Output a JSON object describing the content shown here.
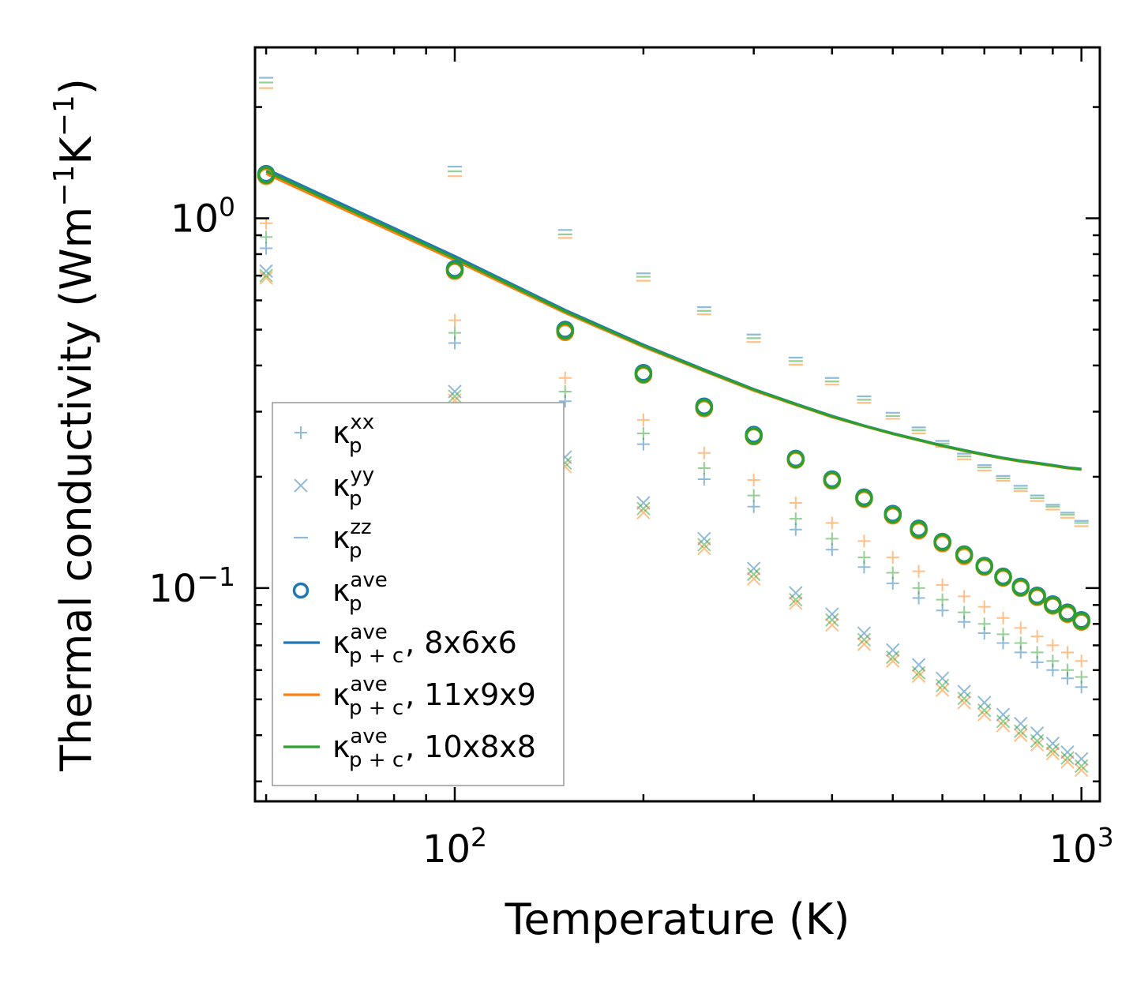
{
  "chart_data": {
    "type": "scatter",
    "title": "",
    "xlabel": "Temperature (K)",
    "ylabel": "Thermal conductivity (Wm$^{-1}$K$^{-1}$)",
    "ylabel_parts": {
      "main": "Thermal conductivity (Wm",
      "sup1": "−1",
      "mid": "K",
      "sup2": "−1",
      "end": ")"
    },
    "xscale": "log",
    "yscale": "log",
    "xlim": [
      48,
      1070
    ],
    "ylim": [
      0.0265,
      2.9
    ],
    "xticks": [
      {
        "value": 100,
        "base": "10",
        "exp": "2"
      },
      {
        "value": 1000,
        "base": "10",
        "exp": "3"
      }
    ],
    "yticks": [
      {
        "value": 0.1,
        "base": "10",
        "exp": "−1"
      },
      {
        "value": 1,
        "base": "10",
        "exp": "0"
      }
    ],
    "colors": {
      "blue": "#1f77b4",
      "orange": "#ff7f0e",
      "green": "#2ca02c"
    },
    "x": [
      50,
      100,
      150,
      200,
      250,
      300,
      350,
      400,
      450,
      500,
      550,
      600,
      650,
      700,
      750,
      800,
      850,
      900,
      950,
      1000
    ],
    "series": [
      {
        "name": "8x6x6",
        "color": "#1f77b4",
        "kxx": [
          0.83,
          0.46,
          0.32,
          0.245,
          0.197,
          0.166,
          0.144,
          0.127,
          0.114,
          0.103,
          0.094,
          0.087,
          0.081,
          0.0755,
          0.071,
          0.067,
          0.063,
          0.06,
          0.057,
          0.054
        ],
        "kyy": [
          0.72,
          0.34,
          0.226,
          0.17,
          0.136,
          0.113,
          0.097,
          0.085,
          0.0755,
          0.068,
          0.062,
          0.057,
          0.0525,
          0.049,
          0.0455,
          0.043,
          0.0405,
          0.038,
          0.036,
          0.0345
        ],
        "kzz": [
          2.4,
          1.38,
          0.93,
          0.71,
          0.575,
          0.485,
          0.42,
          0.37,
          0.33,
          0.298,
          0.272,
          0.25,
          0.231,
          0.215,
          0.201,
          0.189,
          0.178,
          0.168,
          0.16,
          0.152
        ],
        "kave": [
          1.32,
          0.73,
          0.5,
          0.382,
          0.31,
          0.26,
          0.224,
          0.197,
          0.176,
          0.159,
          0.145,
          0.1335,
          0.1235,
          0.115,
          0.1075,
          0.101,
          0.0955,
          0.0905,
          0.086,
          0.082
        ],
        "kpc": [
          1.36,
          0.79,
          0.565,
          0.455,
          0.39,
          0.345,
          0.315,
          0.292,
          0.275,
          0.262,
          0.252,
          0.243,
          0.236,
          0.23,
          0.225,
          0.221,
          0.218,
          0.215,
          0.212,
          0.21
        ]
      },
      {
        "name": "11x9x9",
        "color": "#ff7f0e",
        "kxx": [
          0.97,
          0.53,
          0.37,
          0.285,
          0.232,
          0.196,
          0.17,
          0.15,
          0.134,
          0.121,
          0.111,
          0.102,
          0.095,
          0.089,
          0.083,
          0.078,
          0.074,
          0.07,
          0.067,
          0.0635
        ],
        "kyy": [
          0.69,
          0.322,
          0.213,
          0.16,
          0.128,
          0.106,
          0.091,
          0.0795,
          0.0705,
          0.0635,
          0.0578,
          0.053,
          0.049,
          0.0455,
          0.0425,
          0.04,
          0.0377,
          0.0357,
          0.0339,
          0.0322
        ],
        "kzz": [
          2.25,
          1.3,
          0.885,
          0.678,
          0.55,
          0.463,
          0.402,
          0.355,
          0.317,
          0.287,
          0.262,
          0.241,
          0.223,
          0.208,
          0.195,
          0.183,
          0.172,
          0.163,
          0.155,
          0.147
        ],
        "kave": [
          1.3,
          0.72,
          0.492,
          0.377,
          0.306,
          0.257,
          0.222,
          0.195,
          0.174,
          0.157,
          0.143,
          0.132,
          0.122,
          0.114,
          0.1065,
          0.1,
          0.0945,
          0.0895,
          0.085,
          0.081
        ],
        "kpc": [
          1.32,
          0.77,
          0.555,
          0.449,
          0.386,
          0.342,
          0.313,
          0.29,
          0.274,
          0.261,
          0.251,
          0.242,
          0.235,
          0.229,
          0.224,
          0.22,
          0.217,
          0.214,
          0.211,
          0.209
        ]
      },
      {
        "name": "10x8x8",
        "color": "#2ca02c",
        "kxx": [
          0.89,
          0.49,
          0.34,
          0.262,
          0.211,
          0.178,
          0.154,
          0.136,
          0.121,
          0.11,
          0.1,
          0.093,
          0.086,
          0.08,
          0.075,
          0.071,
          0.067,
          0.0635,
          0.06,
          0.0575
        ],
        "kyy": [
          0.7,
          0.33,
          0.218,
          0.164,
          0.131,
          0.109,
          0.093,
          0.082,
          0.0725,
          0.065,
          0.059,
          0.0545,
          0.0503,
          0.0467,
          0.0436,
          0.041,
          0.0386,
          0.0365,
          0.0347,
          0.033
        ],
        "kzz": [
          2.33,
          1.34,
          0.905,
          0.695,
          0.562,
          0.474,
          0.411,
          0.362,
          0.323,
          0.292,
          0.267,
          0.246,
          0.227,
          0.212,
          0.198,
          0.186,
          0.175,
          0.166,
          0.158,
          0.15
        ],
        "kave": [
          1.31,
          0.725,
          0.496,
          0.379,
          0.308,
          0.258,
          0.223,
          0.196,
          0.175,
          0.158,
          0.144,
          0.133,
          0.123,
          0.1145,
          0.107,
          0.1005,
          0.095,
          0.09,
          0.0855,
          0.0815
        ],
        "kpc": [
          1.34,
          0.78,
          0.56,
          0.452,
          0.388,
          0.344,
          0.314,
          0.291,
          0.2745,
          0.2615,
          0.2515,
          0.2425,
          0.2355,
          0.2295,
          0.2245,
          0.2205,
          0.2175,
          0.2145,
          0.2115,
          0.2095
        ]
      }
    ],
    "legend": {
      "position": "lower-left",
      "entries": [
        {
          "marker": "plus",
          "color": "#1f77b4",
          "base": "κ",
          "sup": "xx",
          "sub": "p",
          "suffix": ""
        },
        {
          "marker": "x",
          "color": "#1f77b4",
          "base": "κ",
          "sup": "yy",
          "sub": "p",
          "suffix": ""
        },
        {
          "marker": "hline",
          "color": "#1f77b4",
          "base": "κ",
          "sup": "zz",
          "sub": "p",
          "suffix": ""
        },
        {
          "marker": "circle",
          "color": "#1f77b4",
          "base": "κ",
          "sup": "ave",
          "sub": "p",
          "suffix": ""
        },
        {
          "marker": "line",
          "color": "#1f77b4",
          "base": "κ",
          "sup": "ave",
          "sub": "p + c",
          "suffix": ", 8x6x6"
        },
        {
          "marker": "line",
          "color": "#ff7f0e",
          "base": "κ",
          "sup": "ave",
          "sub": "p + c",
          "suffix": ", 11x9x9"
        },
        {
          "marker": "line",
          "color": "#2ca02c",
          "base": "κ",
          "sup": "ave",
          "sub": "p + c",
          "suffix": ", 10x8x8"
        }
      ]
    }
  }
}
